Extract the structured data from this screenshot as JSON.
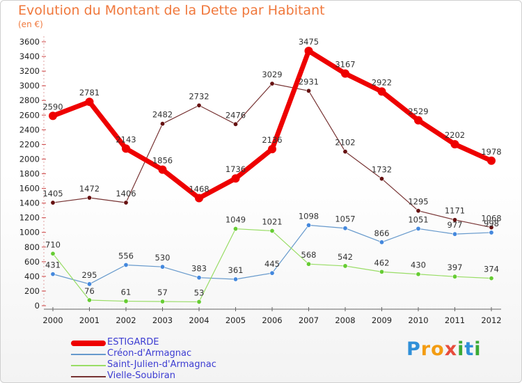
{
  "header": {
    "title": "Evolution du Montant de la Dette par Habitant",
    "subtitle": "(en €)"
  },
  "logo": {
    "text": "Proxiti",
    "colors": [
      "#2f8fd8",
      "#f39c12",
      "#f39c12",
      "#e74c3c",
      "#3aaa35",
      "#2f8fd8",
      "#3aaa35"
    ]
  },
  "chart_data": {
    "type": "line",
    "title": "Evolution du Montant de la Dette par Habitant",
    "subtitle": "(en €)",
    "xlabel": "",
    "ylabel": "",
    "x": [
      "2000",
      "2001",
      "2002",
      "2003",
      "2004",
      "2005",
      "2006",
      "2007",
      "2008",
      "2009",
      "2010",
      "2011",
      "2012"
    ],
    "ylim": [
      0,
      3600
    ],
    "yticks": [
      0,
      200,
      400,
      600,
      800,
      1000,
      1200,
      1400,
      1600,
      1800,
      2000,
      2200,
      2400,
      2600,
      2800,
      3000,
      3200,
      3400,
      3600
    ],
    "grid": false,
    "legend_position": "bottom-left",
    "series": [
      {
        "name": "ESTIGARDE",
        "color": "#ee0000",
        "marker": "#ee0000",
        "width": 7,
        "values": [
          2590,
          2781,
          2143,
          1856,
          1468,
          1736,
          2136,
          3475,
          3167,
          2922,
          2529,
          2202,
          1978
        ]
      },
      {
        "name": "Créon-d'Armagnac",
        "color": "#6699cc",
        "marker": "#4488dd",
        "width": 1.2,
        "values": [
          431,
          295,
          556,
          530,
          383,
          361,
          445,
          1098,
          1057,
          866,
          1051,
          977,
          998
        ]
      },
      {
        "name": "Saint-Julien-d'Armagnac",
        "color": "#99dd66",
        "marker": "#66cc33",
        "width": 1.2,
        "values": [
          710,
          76,
          61,
          57,
          53,
          1049,
          1021,
          568,
          542,
          462,
          430,
          397,
          374
        ]
      },
      {
        "name": "Vielle-Soubiran",
        "color": "#773333",
        "marker": "#661111",
        "width": 1.2,
        "values": [
          1405,
          1472,
          1406,
          2482,
          2732,
          2476,
          3029,
          2931,
          2102,
          1732,
          1295,
          1171,
          1068
        ]
      }
    ]
  }
}
